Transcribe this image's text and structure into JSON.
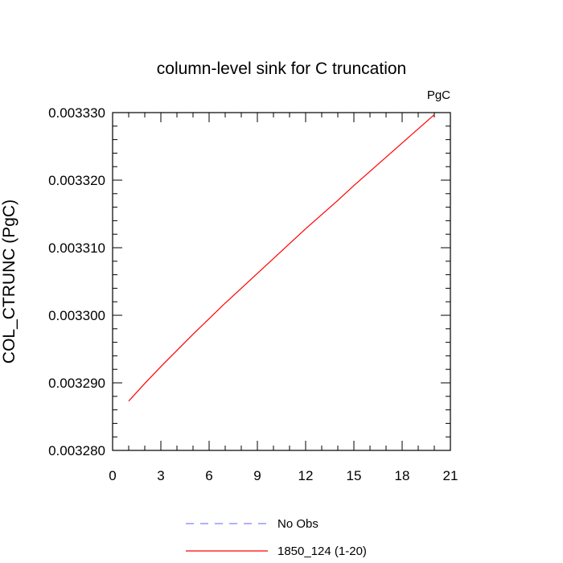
{
  "chart_data": {
    "type": "line",
    "title": "column-level sink for C truncation",
    "units_label": "PgC",
    "ylabel": "COL_CTRUNC  (PgC)",
    "xlabel": "",
    "xlim": [
      0,
      21
    ],
    "ylim": [
      0.00328,
      0.00333
    ],
    "x_ticks": [
      0,
      3,
      6,
      9,
      12,
      15,
      18,
      21
    ],
    "x_tick_labels": [
      "0",
      "3",
      "6",
      "9",
      "12",
      "15",
      "18",
      "21"
    ],
    "y_ticks": [
      0.00328,
      0.00329,
      0.0033,
      0.00331,
      0.00332,
      0.00333
    ],
    "y_tick_labels": [
      "0.003280",
      "0.003290",
      "0.003300",
      "0.003310",
      "0.003320",
      "0.003330"
    ],
    "series": [
      {
        "name": "No Obs",
        "color": "#8080ff",
        "dash": "dashed",
        "x": [],
        "y": []
      },
      {
        "name": "1850_124 (1-20)",
        "color": "#ff0000",
        "dash": "solid",
        "x": [
          1,
          2,
          3,
          4,
          5,
          6,
          7,
          8,
          9,
          10,
          11,
          12,
          13,
          14,
          15,
          16,
          17,
          18,
          19,
          20
        ],
        "y": [
          0.0032873,
          0.0032899,
          0.0032924,
          0.0032948,
          0.0032972,
          0.0032995,
          0.0033018,
          0.003304,
          0.0033062,
          0.0033084,
          0.0033106,
          0.0033128,
          0.0033149,
          0.003317,
          0.0033192,
          0.0033213,
          0.0033234,
          0.0033255,
          0.0033276,
          0.0033297
        ]
      }
    ],
    "legend": {
      "placement": "bottom"
    }
  }
}
